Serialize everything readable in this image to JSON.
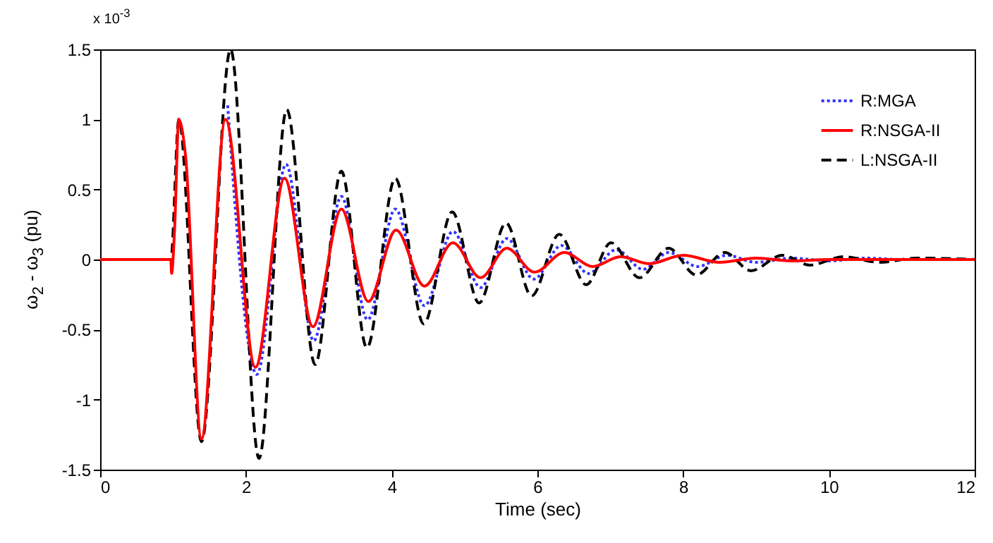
{
  "chart_data": {
    "type": "line",
    "xlabel": "Time (sec)",
    "ylabel": "ω$_{2}$ - ω$_{3}$ (pu)",
    "annotations": [
      "x 10$^{-3}$"
    ],
    "xlim": [
      0,
      12
    ],
    "xticks": [
      0,
      2,
      4,
      6,
      8,
      10,
      12
    ],
    "ylim": [
      -1.5,
      1.5
    ],
    "yticks": [
      -1.5,
      -1,
      -0.5,
      0,
      0.5,
      1,
      1.5
    ],
    "grid": false,
    "legend": "top right",
    "series": [
      {
        "name": "R:MGA",
        "color": "#3333ff",
        "line_style": "dotted",
        "x": [
          1.75,
          2.15,
          2.55,
          2.93,
          3.31,
          3.67,
          4.05,
          4.45,
          4.84,
          5.22,
          5.58,
          5.95,
          6.33,
          6.7,
          7.08,
          7.45,
          7.8,
          8.2,
          8.6,
          9.0,
          9.5,
          10,
          10.5,
          11,
          12
        ],
        "values": [
          1.1,
          -0.82,
          0.68,
          -0.58,
          0.45,
          -0.43,
          0.36,
          -0.33,
          0.2,
          -0.2,
          0.15,
          -0.14,
          0.1,
          -0.1,
          0.07,
          -0.07,
          0.05,
          -0.05,
          0.03,
          -0.02,
          0.01,
          -0.01,
          0.01,
          0,
          0
        ]
      },
      {
        "name": "R:NSGA-II",
        "color": "#ff0000",
        "line_style": "solid",
        "x": [
          0,
          0.97,
          0.98,
          1.02,
          1.08,
          1.17,
          1.39,
          1.72,
          2.13,
          2.53,
          2.92,
          3.31,
          3.68,
          4.06,
          4.45,
          4.84,
          5.22,
          5.58,
          5.96,
          6.37,
          6.76,
          7.14,
          7.53,
          8.0,
          8.5,
          9.0,
          9.5,
          10,
          11,
          12
        ],
        "values": [
          0,
          0,
          -0.1,
          0.2,
          1.0,
          0.75,
          -1.28,
          1.0,
          -0.77,
          0.58,
          -0.48,
          0.36,
          -0.3,
          0.21,
          -0.19,
          0.12,
          -0.13,
          0.08,
          -0.09,
          0.05,
          -0.05,
          0.02,
          -0.03,
          0.03,
          -0.02,
          0.01,
          -0.01,
          0,
          0,
          0
        ]
      },
      {
        "name": "L:NSGA-II",
        "color": "#000000",
        "line_style": "dashed",
        "x": [
          0,
          0.97,
          1.08,
          1.39,
          1.79,
          2.18,
          2.56,
          2.95,
          3.31,
          3.66,
          4.05,
          4.44,
          4.83,
          5.2,
          5.57,
          5.92,
          6.3,
          6.67,
          7.01,
          7.4,
          7.8,
          8.18,
          8.57,
          8.93,
          9.36,
          9.74,
          10.2,
          10.7,
          11.2,
          12
        ],
        "values": [
          0,
          0,
          1.0,
          -1.3,
          1.5,
          -1.42,
          1.07,
          -0.75,
          0.63,
          -0.63,
          0.58,
          -0.46,
          0.34,
          -0.31,
          0.26,
          -0.26,
          0.18,
          -0.18,
          0.12,
          -0.13,
          0.08,
          -0.11,
          0.05,
          -0.08,
          0.03,
          -0.04,
          0.02,
          -0.02,
          0.01,
          0
        ]
      }
    ]
  }
}
